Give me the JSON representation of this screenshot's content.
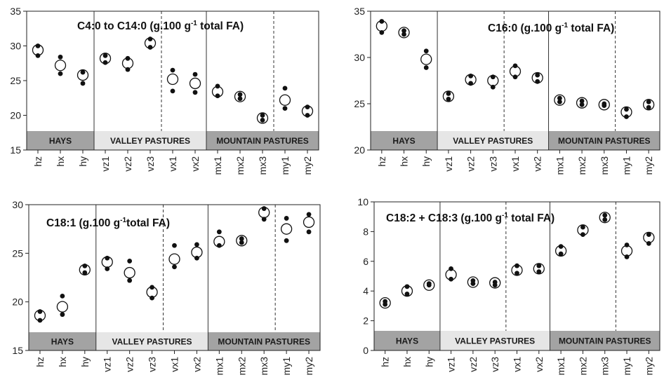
{
  "categories": [
    "hz",
    "hx",
    "hy",
    "vz1",
    "vz2",
    "vz3",
    "vx1",
    "vx2",
    "mx1",
    "mx2",
    "mx3",
    "my1",
    "my2"
  ],
  "groups": [
    {
      "label": "HAYS",
      "start": 0,
      "end": 2,
      "color": "#a3a3a3"
    },
    {
      "label": "VALLEY PASTURES",
      "start": 3,
      "end": 7,
      "color": "#e6e6e6"
    },
    {
      "label": "MOUNTAIN PASTURES",
      "start": 8,
      "end": 12,
      "color": "#a3a3a3"
    }
  ],
  "chart_data": [
    {
      "type": "scatter",
      "title": "C4:0 to C14:0 (g.100 g",
      "title_sup": "-1",
      "title_end": " total FA)",
      "ylim": [
        15,
        35
      ],
      "yticks": [
        "15",
        "20",
        "25",
        "30",
        "35"
      ],
      "categories": [
        "hz",
        "hx",
        "hy",
        "vz1",
        "vz2",
        "vz3",
        "vx1",
        "vx2",
        "mx1",
        "mx2",
        "mx3",
        "my1",
        "my2"
      ],
      "mean": [
        29.4,
        27.2,
        25.8,
        28.2,
        27.5,
        30.4,
        25.2,
        24.6,
        23.4,
        22.7,
        19.6,
        22.2,
        20.6
      ],
      "replicates": [
        [
          30.0,
          28.6
        ],
        [
          28.4,
          26.0
        ],
        [
          26.2,
          24.6
        ],
        [
          28.6,
          27.6
        ],
        [
          28.2,
          26.6
        ],
        [
          31.0,
          29.8
        ],
        [
          26.5,
          23.5
        ],
        [
          25.9,
          23.3
        ],
        [
          24.2,
          22.8
        ],
        [
          23.0,
          22.4
        ],
        [
          20.0,
          19.3
        ],
        [
          23.9,
          21.0
        ],
        [
          21.2,
          20.0
        ]
      ]
    },
    {
      "type": "scatter",
      "title": "C16:0 (g.100 g",
      "title_sup": "-1",
      "title_end": " total FA)",
      "ylim": [
        20,
        35
      ],
      "yticks": [
        "20",
        "25",
        "30",
        "35"
      ],
      "categories": [
        "hz",
        "hx",
        "hy",
        "vz1",
        "vz2",
        "vz3",
        "vx1",
        "vx2",
        "mx1",
        "mx2",
        "mx3",
        "my1",
        "my2"
      ],
      "mean": [
        33.4,
        32.7,
        29.8,
        25.8,
        27.6,
        27.5,
        28.5,
        27.8,
        25.4,
        25.1,
        24.9,
        24.1,
        24.9
      ],
      "replicates": [
        [
          33.9,
          32.7
        ],
        [
          32.9,
          32.5
        ],
        [
          30.7,
          28.9
        ],
        [
          26.1,
          25.5
        ],
        [
          28.0,
          27.2
        ],
        [
          27.9,
          26.8
        ],
        [
          29.1,
          27.9
        ],
        [
          28.1,
          27.4
        ],
        [
          25.6,
          25.2
        ],
        [
          25.3,
          24.9
        ],
        [
          25.0,
          24.8
        ],
        [
          24.4,
          23.6
        ],
        [
          25.2,
          24.6
        ]
      ]
    },
    {
      "type": "scatter",
      "title": "C18:1 (g.100 g",
      "title_sup": "-1",
      "title_end": "total FA)",
      "ylim": [
        15,
        30
      ],
      "yticks": [
        "15",
        "20",
        "25",
        "30"
      ],
      "categories": [
        "hz",
        "hx",
        "hy",
        "vz1",
        "vz2",
        "vz3",
        "vx1",
        "vx2",
        "mx1",
        "mx2",
        "mx3",
        "my1",
        "my2"
      ],
      "mean": [
        18.6,
        19.5,
        23.3,
        24.1,
        23.0,
        21.0,
        24.4,
        25.1,
        26.2,
        26.3,
        29.2,
        27.5,
        28.2
      ],
      "replicates": [
        [
          19.0,
          18.1
        ],
        [
          20.6,
          18.7
        ],
        [
          23.7,
          23.0
        ],
        [
          24.5,
          23.4
        ],
        [
          24.2,
          22.2
        ],
        [
          21.5,
          20.4
        ],
        [
          25.8,
          23.6
        ],
        [
          25.9,
          24.5
        ],
        [
          27.2,
          25.8
        ],
        [
          26.5,
          26.1
        ],
        [
          29.6,
          28.5
        ],
        [
          28.6,
          26.3
        ],
        [
          29.0,
          27.2
        ]
      ]
    },
    {
      "type": "scatter",
      "title": "C18:2 + C18:3 (g.100 g",
      "title_sup": "-1",
      "title_end": " total FA)",
      "ylim": [
        0,
        10
      ],
      "yticks": [
        "0",
        "2",
        "4",
        "6",
        "8",
        "10"
      ],
      "categories": [
        "hz",
        "hx",
        "hy",
        "vz1",
        "vz2",
        "vz3",
        "vx1",
        "vx2",
        "mx1",
        "mx2",
        "mx3",
        "my1",
        "my2"
      ],
      "mean": [
        3.2,
        4.0,
        4.4,
        5.1,
        4.6,
        4.55,
        5.4,
        5.5,
        6.7,
        8.1,
        8.95,
        6.7,
        7.6
      ],
      "replicates": [
        [
          3.3,
          3.1
        ],
        [
          4.3,
          3.8
        ],
        [
          4.5,
          4.4
        ],
        [
          5.5,
          4.8
        ],
        [
          4.7,
          4.5
        ],
        [
          4.6,
          4.4
        ],
        [
          5.7,
          5.2
        ],
        [
          5.7,
          5.3
        ],
        [
          7.0,
          6.5
        ],
        [
          8.3,
          7.8
        ],
        [
          9.1,
          8.8
        ],
        [
          7.1,
          6.3
        ],
        [
          7.8,
          7.2
        ]
      ]
    }
  ]
}
